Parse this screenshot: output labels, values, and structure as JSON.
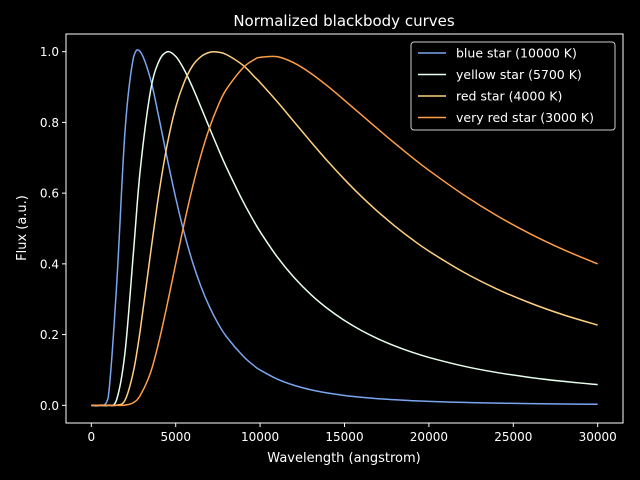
{
  "chart_data": {
    "type": "line",
    "title": "Normalized blackbody curves",
    "xlabel": "Wavelength (angstrom)",
    "ylabel": "Flux (a.u.)",
    "xlim": [
      -1500,
      31500
    ],
    "ylim": [
      -0.05,
      1.05
    ],
    "xticks": [
      0,
      5000,
      10000,
      15000,
      20000,
      25000,
      30000
    ],
    "xtick_labels": [
      "0",
      "5000",
      "10000",
      "15000",
      "20000",
      "25000",
      "30000"
    ],
    "yticks": [
      0.0,
      0.2,
      0.4,
      0.6,
      0.8,
      1.0
    ],
    "ytick_labels": [
      "0.0",
      "0.2",
      "0.4",
      "0.6",
      "0.8",
      "1.0"
    ],
    "grid": false,
    "legend_position": "top-right",
    "x": [
      0,
      500,
      1000,
      1500,
      2000,
      2500,
      2900,
      3500,
      4000,
      4500,
      5000,
      5500,
      6000,
      6500,
      7000,
      7500,
      8000,
      9000,
      9700,
      10000,
      11000,
      12000,
      13000,
      14000,
      15000,
      16000,
      17000,
      18000,
      19000,
      20000,
      22000,
      24000,
      26000,
      28000,
      30000
    ],
    "series": [
      {
        "name": "blue star (10000 K)",
        "color": "#7aa6f0",
        "values": [
          0,
          0.0,
          0.0219,
          0.3402,
          0.778,
          0.9842,
          1.0,
          0.9237,
          0.8147,
          0.6972,
          0.5862,
          0.4881,
          0.4046,
          0.3353,
          0.2785,
          0.2322,
          0.1946,
          0.1387,
          0.1097,
          0.0998,
          0.0745,
          0.0567,
          0.044,
          0.0347,
          0.0279,
          0.0227,
          0.0187,
          0.0156,
          0.0131,
          0.0112,
          0.0082,
          0.0062,
          0.0048,
          0.0038,
          0.003
        ]
      },
      {
        "name": "yellow star (5700 K)",
        "color": "#e8ffec",
        "values": [
          0,
          0.0,
          0.0001,
          0.0162,
          0.1513,
          0.4354,
          0.6662,
          0.8869,
          0.9725,
          0.9999,
          0.9867,
          0.9493,
          0.8988,
          0.8424,
          0.7844,
          0.7276,
          0.6735,
          0.5754,
          0.5148,
          0.491,
          0.4206,
          0.3621,
          0.3136,
          0.2734,
          0.2398,
          0.2116,
          0.1878,
          0.1676,
          0.1503,
          0.1354,
          0.1114,
          0.093,
          0.0788,
          0.0676,
          0.0585
        ]
      },
      {
        "name": "red star (4000 K)",
        "color": "#ffd080",
        "values": [
          0,
          0.0,
          0.0,
          0.0004,
          0.0148,
          0.0971,
          0.2134,
          0.4263,
          0.5975,
          0.7382,
          0.8426,
          0.9132,
          0.9603,
          0.9863,
          0.9981,
          0.9989,
          0.992,
          0.9611,
          0.9274,
          0.9129,
          0.8594,
          0.8024,
          0.7455,
          0.6904,
          0.6388,
          0.5907,
          0.5466,
          0.5062,
          0.4695,
          0.4361,
          0.3781,
          0.3296,
          0.2893,
          0.2554,
          0.2269
        ]
      },
      {
        "name": "very red star (3000 K)",
        "color": "#ff9e45",
        "values": [
          0,
          0.0,
          0.0,
          0.0,
          0.0006,
          0.0077,
          0.0282,
          0.0913,
          0.1791,
          0.2859,
          0.4006,
          0.5139,
          0.6176,
          0.7084,
          0.7846,
          0.8459,
          0.8935,
          0.955,
          0.9789,
          0.9839,
          0.9861,
          0.9686,
          0.9391,
          0.9027,
          0.8626,
          0.8214,
          0.7804,
          0.7401,
          0.7014,
          0.6645,
          0.5969,
          0.5372,
          0.4851,
          0.4396,
          0.3999
        ]
      }
    ]
  }
}
